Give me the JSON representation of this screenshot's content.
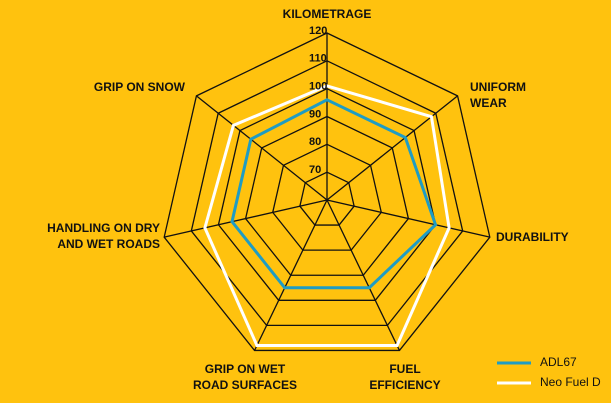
{
  "chart_data": {
    "type": "radar",
    "categories": [
      [
        "KILOMETRAGE"
      ],
      [
        "UNIFORM",
        "WEAR"
      ],
      [
        "DURABILITY"
      ],
      [
        "FUEL",
        "EFFICIENCY"
      ],
      [
        "GRIP ON WET",
        "ROAD SURFACES"
      ],
      [
        "HANDLING ON DRY",
        "AND WET ROADS"
      ],
      [
        "GRIP ON SNOW"
      ]
    ],
    "ylim": [
      60,
      120
    ],
    "yticks": [
      70,
      80,
      90,
      100,
      110,
      120
    ],
    "series": [
      {
        "name": "ADL67",
        "color": "#1f9cc4",
        "values": [
          96,
          96,
          100,
          95,
          95,
          95,
          95
        ]
      },
      {
        "name": "Neo Fuel D",
        "color": "#ffffff",
        "values": [
          101,
          108,
          105,
          118,
          118,
          105,
          103
        ]
      }
    ]
  }
}
